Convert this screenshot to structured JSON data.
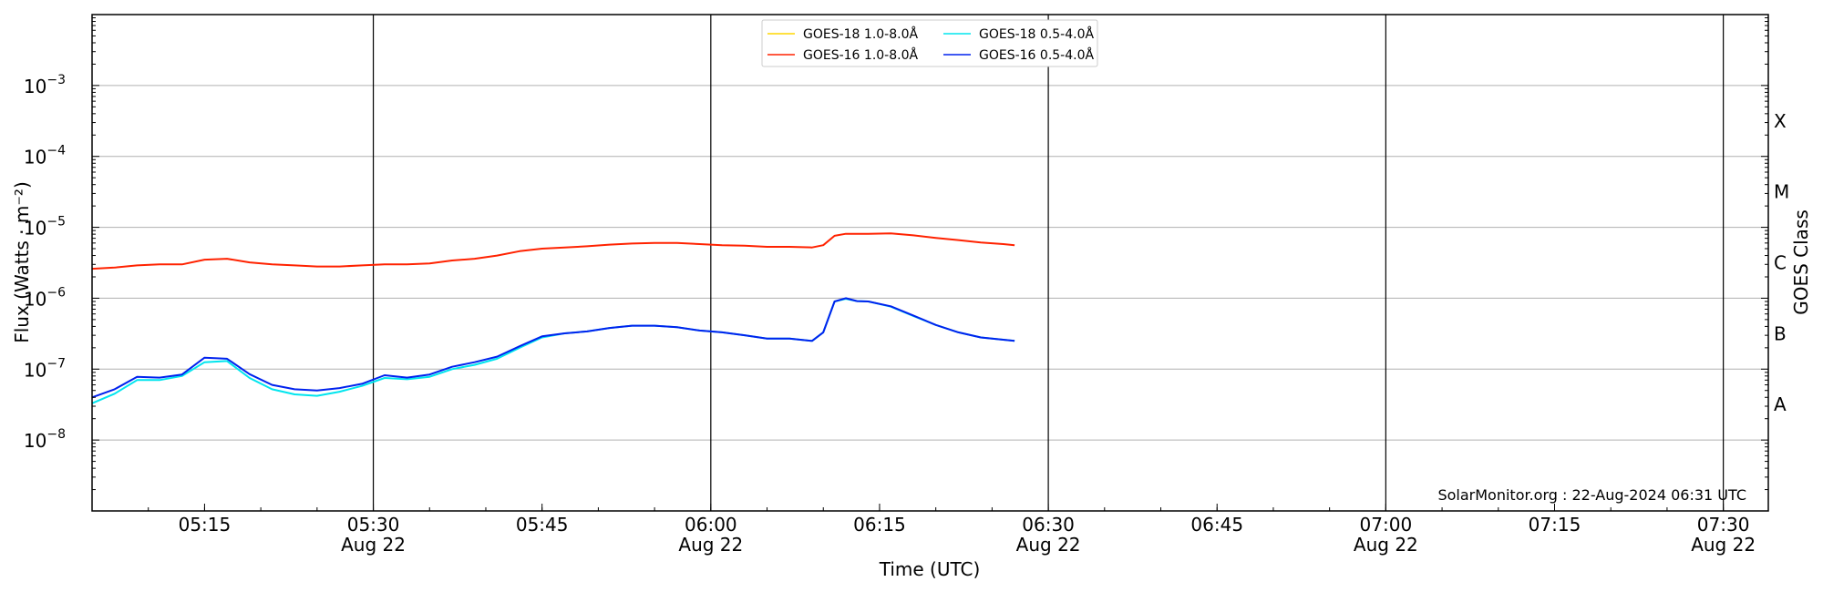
{
  "chart_data": {
    "type": "line",
    "xlabel": "Time (UTC)",
    "ylabel": "Flux (Watts · m⁻²)",
    "right_ylabel": "GOES Class",
    "y_scale": "log",
    "ylim": [
      1e-09,
      0.01
    ],
    "xlim": [
      "2024-08-22T05:05:00",
      "2024-08-22T07:34:00"
    ],
    "y_ticks": [
      {
        "value": 1e-08,
        "base": "10",
        "exp": "−8"
      },
      {
        "value": 1e-07,
        "base": "10",
        "exp": "−7"
      },
      {
        "value": 1e-06,
        "base": "10",
        "exp": "−6"
      },
      {
        "value": 1e-05,
        "base": "10",
        "exp": "−5"
      },
      {
        "value": 0.0001,
        "base": "10",
        "exp": "−4"
      },
      {
        "value": 0.001,
        "base": "10",
        "exp": "−3"
      }
    ],
    "x_ticks": [
      {
        "time": "05:15",
        "label": "05:15",
        "date": ""
      },
      {
        "time": "05:30",
        "label": "05:30",
        "date": "Aug 22"
      },
      {
        "time": "05:45",
        "label": "05:45",
        "date": ""
      },
      {
        "time": "06:00",
        "label": "06:00",
        "date": "Aug 22"
      },
      {
        "time": "06:15",
        "label": "06:15",
        "date": ""
      },
      {
        "time": "06:30",
        "label": "06:30",
        "date": "Aug 22"
      },
      {
        "time": "06:45",
        "label": "06:45",
        "date": ""
      },
      {
        "time": "07:00",
        "label": "07:00",
        "date": "Aug 22"
      },
      {
        "time": "07:15",
        "label": "07:15",
        "date": ""
      },
      {
        "time": "07:30",
        "label": "07:30",
        "date": "Aug 22"
      }
    ],
    "vertical_lines": [
      "05:30",
      "06:00",
      "06:30",
      "07:00",
      "07:30"
    ],
    "classes": [
      {
        "label": "A",
        "value": 3.16e-08
      },
      {
        "label": "B",
        "value": 3.16e-07
      },
      {
        "label": "C",
        "value": 3.16e-06
      },
      {
        "label": "M",
        "value": 3.16e-05
      },
      {
        "label": "X",
        "value": 0.000316
      }
    ],
    "grid": true,
    "legend_position": "top-center",
    "series": [
      {
        "name": "GOES-18 1.0-8.0Å",
        "color": "#ffd700",
        "x": [],
        "values": []
      },
      {
        "name": "GOES-18 0.5-4.0Å",
        "color": "#00e5ee",
        "x": [
          "05:05",
          "05:07",
          "05:09",
          "05:11",
          "05:13",
          "05:15",
          "05:17",
          "05:19",
          "05:21",
          "05:23",
          "05:25",
          "05:27",
          "05:29",
          "05:31",
          "05:33",
          "05:35",
          "05:37",
          "05:39",
          "05:41",
          "05:43",
          "05:45",
          "05:47",
          "05:49",
          "05:51",
          "05:53",
          "05:55",
          "05:57",
          "05:59",
          "06:01",
          "06:03",
          "06:05",
          "06:07",
          "06:09",
          "06:10",
          "06:11",
          "06:12",
          "06:13",
          "06:14",
          "06:16",
          "06:18",
          "06:20",
          "06:22",
          "06:24",
          "06:26",
          "06:27"
        ],
        "values": [
          3.3e-08,
          4.5e-08,
          7e-08,
          7e-08,
          8e-08,
          1.25e-07,
          1.3e-07,
          7.5e-08,
          5.2e-08,
          4.4e-08,
          4.2e-08,
          4.8e-08,
          5.8e-08,
          7.5e-08,
          7.2e-08,
          7.8e-08,
          1e-07,
          1.15e-07,
          1.4e-07,
          2e-07,
          2.8e-07,
          3.2e-07,
          3.4e-07,
          3.8e-07,
          4.1e-07,
          4.1e-07,
          3.9e-07,
          3.5e-07,
          3.3e-07,
          3e-07,
          2.7e-07,
          2.7e-07,
          2.5e-07,
          3.3e-07,
          9e-07,
          9.8e-07,
          9.1e-07,
          9e-07,
          7.6e-07,
          5.6e-07,
          4.2e-07,
          3.3e-07,
          2.8e-07,
          2.6e-07,
          2.5e-07
        ]
      },
      {
        "name": "GOES-16 1.0-8.0Å",
        "color": "#ff2200",
        "x": [
          "05:05",
          "05:07",
          "05:09",
          "05:11",
          "05:13",
          "05:15",
          "05:17",
          "05:19",
          "05:21",
          "05:23",
          "05:25",
          "05:27",
          "05:29",
          "05:31",
          "05:33",
          "05:35",
          "05:37",
          "05:39",
          "05:41",
          "05:43",
          "05:45",
          "05:47",
          "05:49",
          "05:51",
          "05:53",
          "05:55",
          "05:57",
          "05:59",
          "06:01",
          "06:03",
          "06:05",
          "06:07",
          "06:09",
          "06:10",
          "06:11",
          "06:12",
          "06:13",
          "06:14",
          "06:16",
          "06:18",
          "06:20",
          "06:22",
          "06:24",
          "06:26",
          "06:27"
        ],
        "values": [
          2.6e-06,
          2.7e-06,
          2.9e-06,
          3e-06,
          3e-06,
          3.5e-06,
          3.6e-06,
          3.2e-06,
          3e-06,
          2.9e-06,
          2.8e-06,
          2.8e-06,
          2.9e-06,
          3e-06,
          3e-06,
          3.1e-06,
          3.4e-06,
          3.6e-06,
          4e-06,
          4.6e-06,
          5e-06,
          5.2e-06,
          5.4e-06,
          5.7e-06,
          5.9e-06,
          6e-06,
          6e-06,
          5.8e-06,
          5.6e-06,
          5.5e-06,
          5.3e-06,
          5.3e-06,
          5.2e-06,
          5.6e-06,
          7.6e-06,
          8.1e-06,
          8.1e-06,
          8.1e-06,
          8.2e-06,
          7.7e-06,
          7.1e-06,
          6.6e-06,
          6.1e-06,
          5.8e-06,
          5.6e-06
        ]
      },
      {
        "name": "GOES-16 0.5-4.0Å",
        "color": "#0022ee",
        "x": [
          "05:05",
          "05:07",
          "05:09",
          "05:11",
          "05:13",
          "05:15",
          "05:17",
          "05:19",
          "05:21",
          "05:23",
          "05:25",
          "05:27",
          "05:29",
          "05:31",
          "05:33",
          "05:35",
          "05:37",
          "05:39",
          "05:41",
          "05:43",
          "05:45",
          "05:47",
          "05:49",
          "05:51",
          "05:53",
          "05:55",
          "05:57",
          "05:59",
          "06:01",
          "06:03",
          "06:05",
          "06:07",
          "06:09",
          "06:10",
          "06:11",
          "06:12",
          "06:13",
          "06:14",
          "06:16",
          "06:18",
          "06:20",
          "06:22",
          "06:24",
          "06:26",
          "06:27"
        ],
        "values": [
          4e-08,
          5.2e-08,
          7.8e-08,
          7.6e-08,
          8.4e-08,
          1.45e-07,
          1.4e-07,
          8.5e-08,
          6e-08,
          5.2e-08,
          5e-08,
          5.4e-08,
          6.2e-08,
          8.2e-08,
          7.6e-08,
          8.4e-08,
          1.08e-07,
          1.25e-07,
          1.5e-07,
          2.1e-07,
          2.9e-07,
          3.2e-07,
          3.4e-07,
          3.8e-07,
          4.1e-07,
          4.1e-07,
          3.9e-07,
          3.5e-07,
          3.3e-07,
          3e-07,
          2.7e-07,
          2.7e-07,
          2.5e-07,
          3.3e-07,
          9e-07,
          1e-06,
          9.1e-07,
          9e-07,
          7.7e-07,
          5.7e-07,
          4.2e-07,
          3.3e-07,
          2.8e-07,
          2.6e-07,
          2.5e-07
        ]
      }
    ]
  },
  "credit": "SolarMonitor.org : 22-Aug-2024 06:31 UTC"
}
